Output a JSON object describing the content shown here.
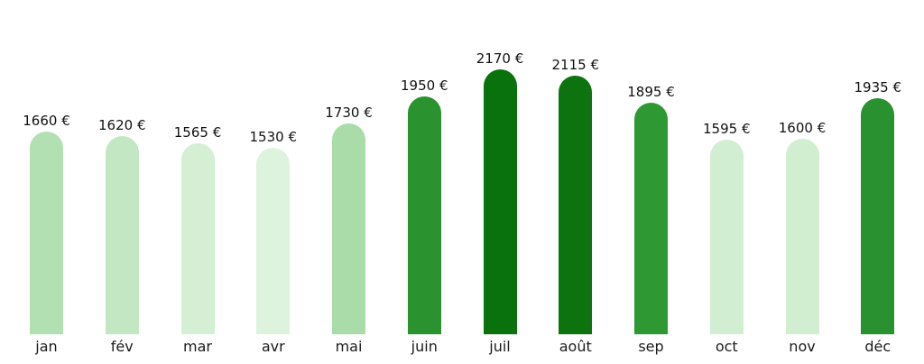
{
  "chart_data": {
    "type": "bar",
    "title": "",
    "xlabel": "",
    "ylabel": "",
    "unit": "€",
    "grid": false,
    "legend": null,
    "axes_visible": false,
    "ylim": [
      0,
      2300
    ],
    "background_color": "#ffffff",
    "label_color": "#111111",
    "categories": [
      "jan",
      "fév",
      "mar",
      "avr",
      "mai",
      "juin",
      "juil",
      "août",
      "sep",
      "oct",
      "nov",
      "déc"
    ],
    "values": [
      1660,
      1620,
      1565,
      1530,
      1730,
      1950,
      2170,
      2115,
      1895,
      1595,
      1600,
      1935
    ],
    "value_labels": [
      "1660 €",
      "1620 €",
      "1565 €",
      "1530 €",
      "1730 €",
      "1950 €",
      "2170 €",
      "2115 €",
      "1895 €",
      "1595 €",
      "1600 €",
      "1935 €"
    ],
    "bar_colors": [
      "#b3e0b3",
      "#c3e7c3",
      "#d4efd4",
      "#def3de",
      "#aadcaa",
      "#2b9230",
      "#0a720c",
      "#0d730f",
      "#2e9933",
      "#d2eed2",
      "#d1eed1",
      "#2a9130"
    ]
  }
}
